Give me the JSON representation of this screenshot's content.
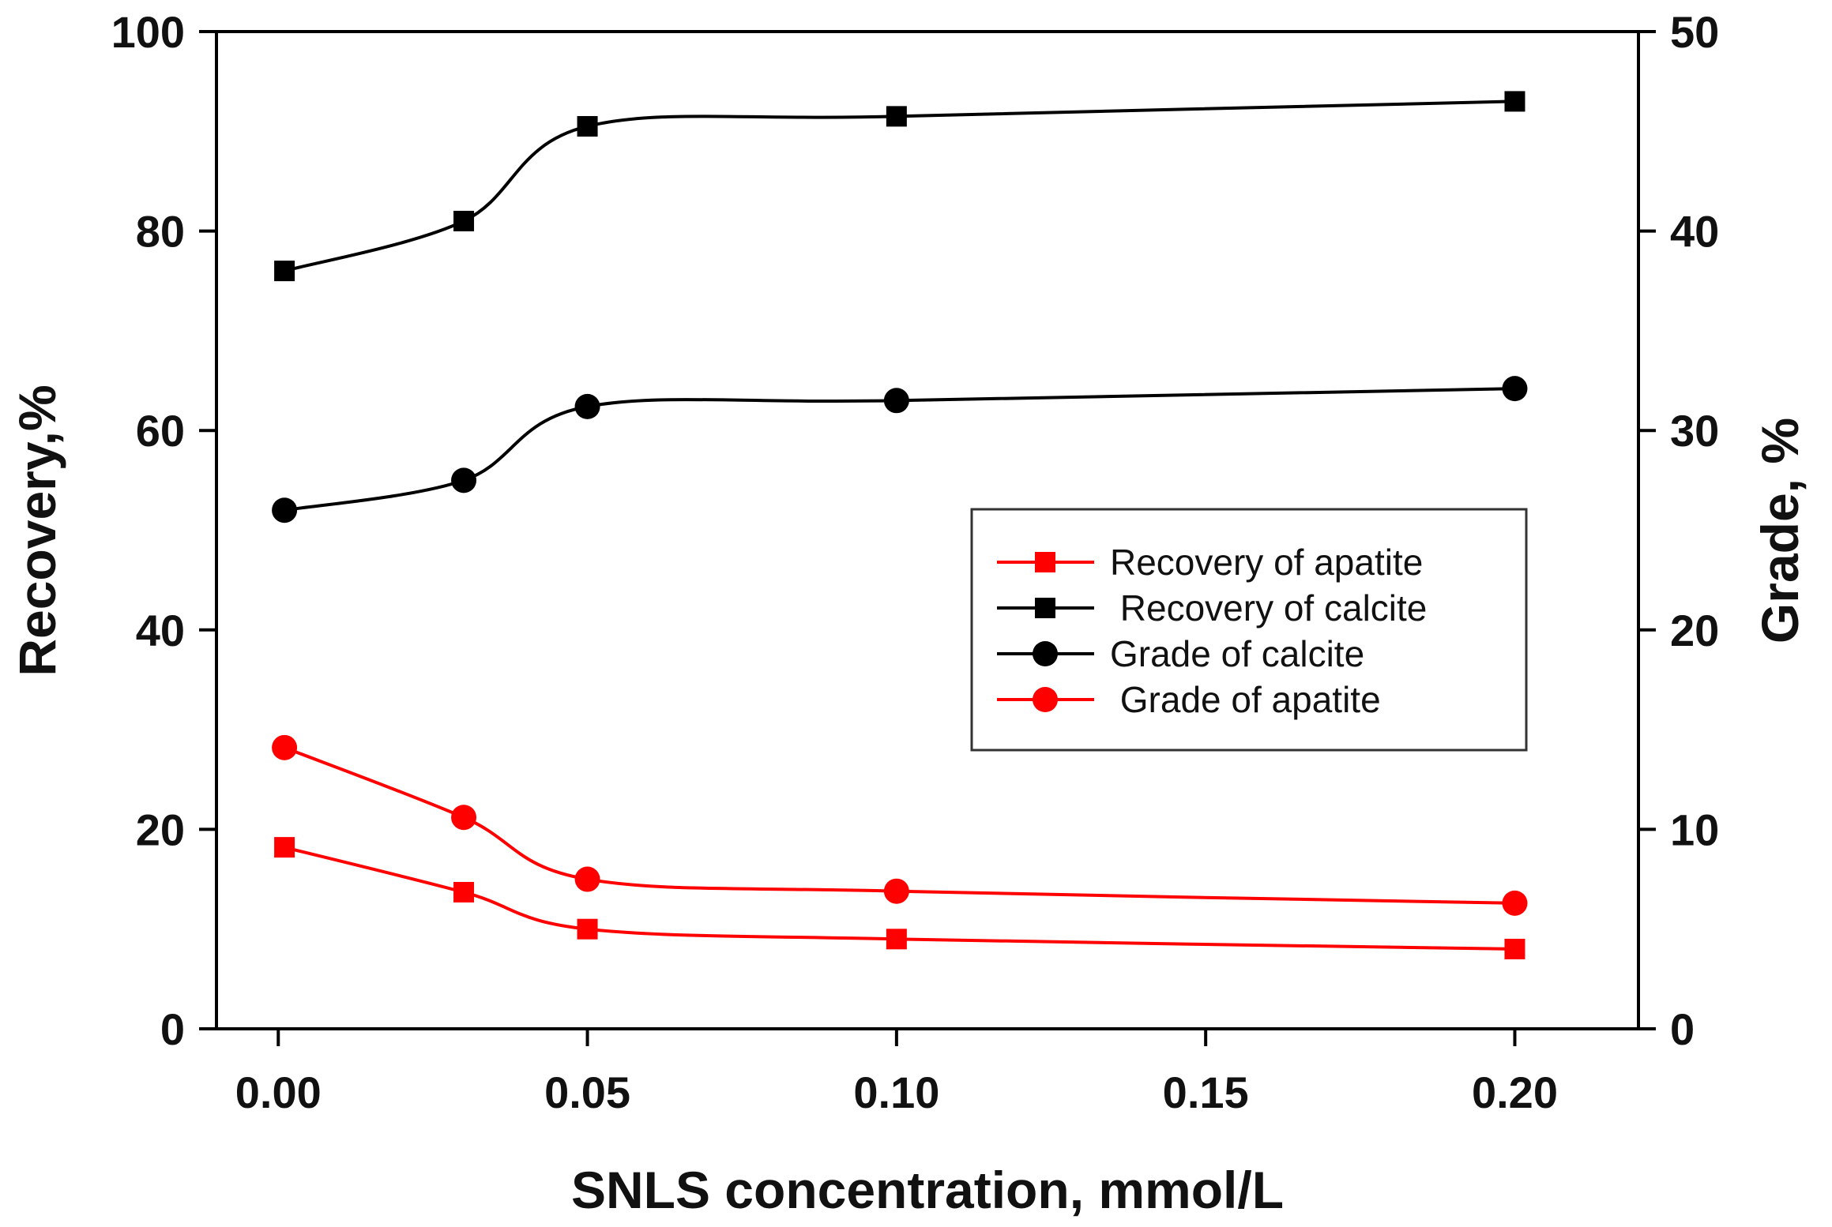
{
  "chart_data": {
    "type": "line",
    "title": "",
    "xlabel": "SNLS concentration, mmol/L",
    "ylabel": "Recovery,%",
    "y2label": "Grade, %",
    "xlim": [
      -0.01,
      0.22
    ],
    "ylim": [
      0,
      100
    ],
    "y2lim": [
      0,
      50
    ],
    "x": [
      0.001,
      0.03,
      0.05,
      0.1,
      0.2
    ],
    "xticks": [
      0.0,
      0.05,
      0.1,
      0.15,
      0.2
    ],
    "xtick_labels": [
      "0.00",
      "0.05",
      "0.10",
      "0.15",
      "0.20"
    ],
    "yticks": [
      0,
      20,
      40,
      60,
      80,
      100
    ],
    "ytick_labels": [
      "0",
      "20",
      "40",
      "60",
      "80",
      "100"
    ],
    "y2ticks": [
      0,
      10,
      20,
      30,
      40,
      50
    ],
    "y2tick_labels": [
      "0",
      "10",
      "20",
      "30",
      "40",
      "50"
    ],
    "grid": false,
    "legend_position": "center-right",
    "series": [
      {
        "name": "Recovery of apatite",
        "axis": "left",
        "marker": "square",
        "color": "#ff0000",
        "values": [
          18.2,
          13.7,
          10.0,
          9.0,
          8.0
        ]
      },
      {
        "name": " Recovery of calcite",
        "axis": "left",
        "marker": "square",
        "color": "#000000",
        "values": [
          76.0,
          81.0,
          90.5,
          91.5,
          93.0
        ]
      },
      {
        "name": "Grade of calcite",
        "axis": "right",
        "marker": "circle",
        "color": "#000000",
        "values": [
          26.0,
          27.5,
          31.2,
          31.5,
          32.1
        ]
      },
      {
        "name": " Grade of apatite",
        "axis": "right",
        "marker": "circle",
        "color": "#ff0000",
        "values": [
          14.1,
          10.6,
          7.5,
          6.9,
          6.3
        ]
      }
    ]
  }
}
